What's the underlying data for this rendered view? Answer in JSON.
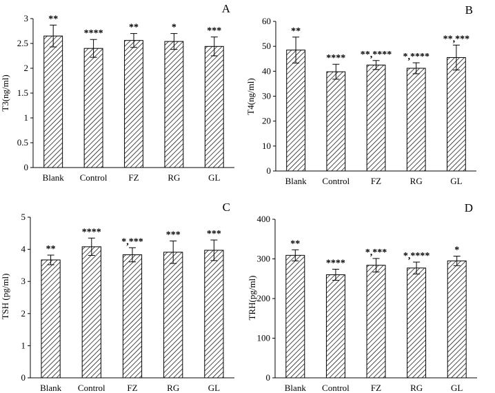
{
  "figure": {
    "background": "#ffffff",
    "bar_fill": "#ffffff",
    "hatch_color": "#000000",
    "line_color": "#000000"
  },
  "chart_data": [
    {
      "type": "bar",
      "panel": "A",
      "ylabel": "T3(ng/ml)",
      "xlabel": "",
      "ylim": [
        0,
        3
      ],
      "yticks": [
        0,
        0.5,
        1,
        1.5,
        2,
        2.5,
        3
      ],
      "ytick_labels": [
        "0",
        "0.5",
        "1",
        "1.5",
        "2",
        "2.5",
        "3"
      ],
      "categories": [
        "Blank",
        "Control",
        "FZ",
        "RG",
        "GL"
      ],
      "values": [
        2.65,
        2.4,
        2.56,
        2.54,
        2.44
      ],
      "errors": [
        0.22,
        0.18,
        0.14,
        0.16,
        0.19
      ],
      "annotations": [
        "**",
        "****",
        "**",
        "*",
        "***"
      ]
    },
    {
      "type": "bar",
      "panel": "B",
      "ylabel": "T4(ng/ml)",
      "xlabel": "",
      "ylim": [
        0,
        60
      ],
      "yticks": [
        0,
        10,
        20,
        30,
        40,
        50,
        60
      ],
      "ytick_labels": [
        "0",
        "10",
        "20",
        "30",
        "40",
        "50",
        "60"
      ],
      "categories": [
        "Blank",
        "Control",
        "FZ",
        "RG",
        "GL"
      ],
      "values": [
        48.5,
        39.8,
        42.5,
        41.2,
        45.5
      ],
      "errors": [
        5.2,
        3.0,
        1.8,
        2.2,
        5.0
      ],
      "annotations": [
        "**",
        "****",
        "**,****",
        "*,****",
        "**,***"
      ]
    },
    {
      "type": "bar",
      "panel": "C",
      "ylabel": "TSH (pg/ml)",
      "xlabel": "",
      "ylim": [
        0,
        5
      ],
      "yticks": [
        0,
        1,
        2,
        3,
        4,
        5
      ],
      "ytick_labels": [
        "0",
        "1",
        "2",
        "3",
        "4",
        "5"
      ],
      "categories": [
        "Blank",
        "Control",
        "FZ",
        "RG",
        "GL"
      ],
      "values": [
        3.67,
        4.08,
        3.83,
        3.91,
        3.97
      ],
      "errors": [
        0.15,
        0.27,
        0.22,
        0.35,
        0.32
      ],
      "annotations": [
        "**",
        "****",
        "*,***",
        "***",
        "***"
      ]
    },
    {
      "type": "bar",
      "panel": "D",
      "ylabel": "TRH(pg/ml)",
      "xlabel": "",
      "ylim": [
        0,
        400
      ],
      "yticks": [
        0,
        100,
        200,
        300,
        400
      ],
      "ytick_labels": [
        "0",
        "100",
        "200",
        "300",
        "400"
      ],
      "categories": [
        "Blank",
        "Control",
        "FZ",
        "RG",
        "GL"
      ],
      "values": [
        309,
        260,
        284,
        277,
        295
      ],
      "errors": [
        14,
        14,
        17,
        15,
        12
      ],
      "annotations": [
        "**",
        "****",
        "*,***",
        "*,****",
        "*"
      ]
    }
  ]
}
